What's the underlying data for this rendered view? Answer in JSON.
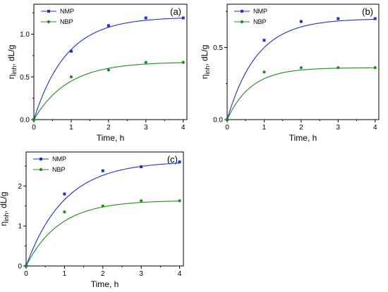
{
  "chart_data": [
    {
      "type": "line",
      "panel_label": "(a)",
      "xlabel": "Time, h",
      "ylabel_main": "η",
      "ylabel_sub": "inh",
      "ylabel_rest": ", dL/g",
      "xlim": [
        0,
        4.1
      ],
      "ylim": [
        0,
        1.35
      ],
      "xticks": [
        0,
        1,
        2,
        3,
        4
      ],
      "xtick_labels": [
        "0",
        "1",
        "2",
        "3",
        "4"
      ],
      "yticks": [
        0,
        0.5,
        1.0
      ],
      "ytick_labels": [
        "0.0",
        "0.5",
        "1.0"
      ],
      "legend_position": "top-left",
      "series": [
        {
          "name": "NMP",
          "color": "#1f2fd0",
          "marker": "square",
          "x": [
            0,
            1,
            2,
            3,
            4
          ],
          "y": [
            0,
            0.8,
            1.1,
            1.19,
            1.19
          ],
          "fit_asymptote": 1.2,
          "fit_rate": 1.15
        },
        {
          "name": "NBP",
          "color": "#1e8c1e",
          "marker": "circle",
          "x": [
            0,
            1,
            2,
            3,
            4
          ],
          "y": [
            0,
            0.5,
            0.58,
            0.67,
            0.67
          ],
          "fit_asymptote": 0.675,
          "fit_rate": 1.1
        }
      ]
    },
    {
      "type": "line",
      "panel_label": "(b)",
      "xlabel": "Time, h",
      "ylabel_main": "η",
      "ylabel_sub": "inh",
      "ylabel_rest": ", dL/g",
      "xlim": [
        0,
        4.1
      ],
      "ylim": [
        0,
        0.8
      ],
      "xticks": [
        0,
        1,
        2,
        3,
        4
      ],
      "xtick_labels": [
        "0",
        "1",
        "2",
        "3",
        "4"
      ],
      "yticks": [
        0,
        0.5
      ],
      "ytick_labels": [
        "0.0",
        "0.5"
      ],
      "legend_position": "top-left",
      "series": [
        {
          "name": "NMP",
          "color": "#1f2fd0",
          "marker": "square",
          "x": [
            0,
            1,
            2,
            3,
            4
          ],
          "y": [
            0,
            0.55,
            0.68,
            0.7,
            0.7
          ],
          "fit_asymptote": 0.7,
          "fit_rate": 1.25
        },
        {
          "name": "NBP",
          "color": "#1e8c1e",
          "marker": "circle",
          "x": [
            0,
            1,
            2,
            3,
            4
          ],
          "y": [
            0,
            0.33,
            0.36,
            0.36,
            0.36
          ],
          "fit_asymptote": 0.36,
          "fit_rate": 1.55
        }
      ]
    },
    {
      "type": "line",
      "panel_label": "(c)",
      "xlabel": "Time, h",
      "ylabel_main": "η",
      "ylabel_sub": "inh",
      "ylabel_rest": ", dL/g",
      "xlim": [
        0,
        4.1
      ],
      "ylim": [
        0,
        2.85
      ],
      "xticks": [
        0,
        1,
        2,
        3,
        4
      ],
      "xtick_labels": [
        "0",
        "1",
        "2",
        "3",
        "4"
      ],
      "yticks": [
        0,
        1,
        2
      ],
      "ytick_labels": [
        "0",
        "1",
        "2"
      ],
      "legend_position": "top-left",
      "series": [
        {
          "name": "NMP",
          "color": "#1f2fd0",
          "marker": "square",
          "x": [
            0,
            1,
            2,
            3,
            4
          ],
          "y": [
            0,
            1.8,
            2.38,
            2.48,
            2.6
          ],
          "fit_asymptote": 2.62,
          "fit_rate": 1.0
        },
        {
          "name": "NBP",
          "color": "#1e8c1e",
          "marker": "circle",
          "x": [
            0,
            1,
            2,
            3,
            4
          ],
          "y": [
            0,
            1.35,
            1.5,
            1.63,
            1.63
          ],
          "fit_asymptote": 1.64,
          "fit_rate": 1.15
        }
      ]
    }
  ]
}
